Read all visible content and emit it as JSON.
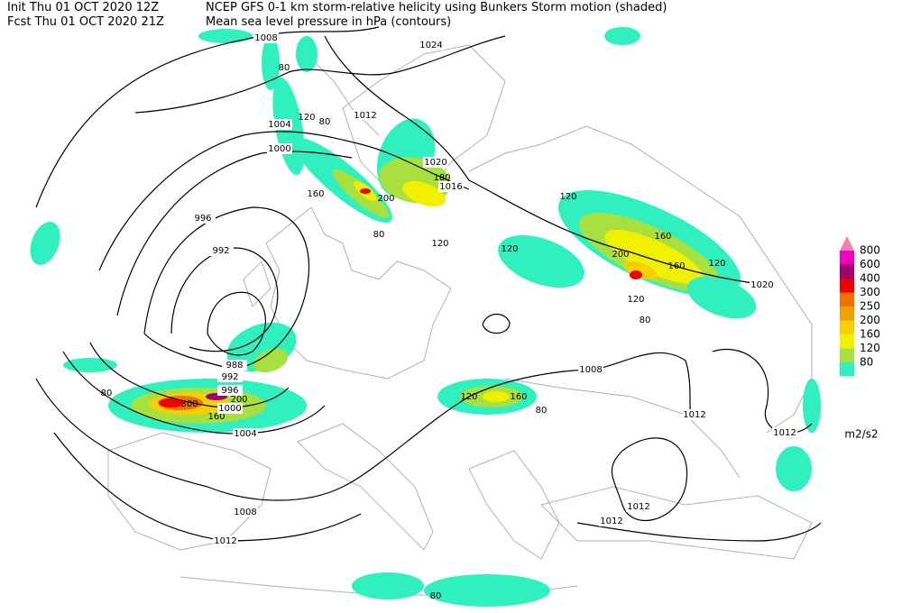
{
  "header": {
    "init": "Init  Thu 01 OCT 2020 12Z",
    "fcst": "Fcst Thu 01 OCT 2020 21Z",
    "title": "NCEP GFS 0-1 km storm-relative helicity using Bunkers Storm motion (shaded)",
    "subtitle": "Mean sea level pressure in hPa (contours)"
  },
  "legend": {
    "unit": "m2/s2",
    "items": [
      {
        "label": 800,
        "color": "#f000c0"
      },
      {
        "label": 600,
        "color": "#a00070"
      },
      {
        "label": 400,
        "color": "#f00000"
      },
      {
        "label": 300,
        "color": "#f07000"
      },
      {
        "label": 250,
        "color": "#f0a000"
      },
      {
        "label": 200,
        "color": "#f8d000"
      },
      {
        "label": 160,
        "color": "#f0f000"
      },
      {
        "label": 120,
        "color": "#a8e040"
      },
      {
        "label": 80,
        "color": "#30f0c0"
      }
    ],
    "top_color": "#f080b0"
  },
  "isobar_labels": [
    1008,
    1024,
    1012,
    1004,
    1000,
    1020,
    1016,
    996,
    992,
    988,
    992,
    996,
    1000,
    1004,
    1008,
    1012,
    1012,
    1020,
    1008,
    1012,
    1012,
    1012
  ],
  "shade_labels": [
    80,
    120,
    80,
    160,
    200,
    180,
    120,
    80,
    120,
    160,
    200,
    120,
    80,
    120,
    160,
    300,
    200,
    160,
    80,
    120,
    160,
    80,
    80,
    120
  ]
}
